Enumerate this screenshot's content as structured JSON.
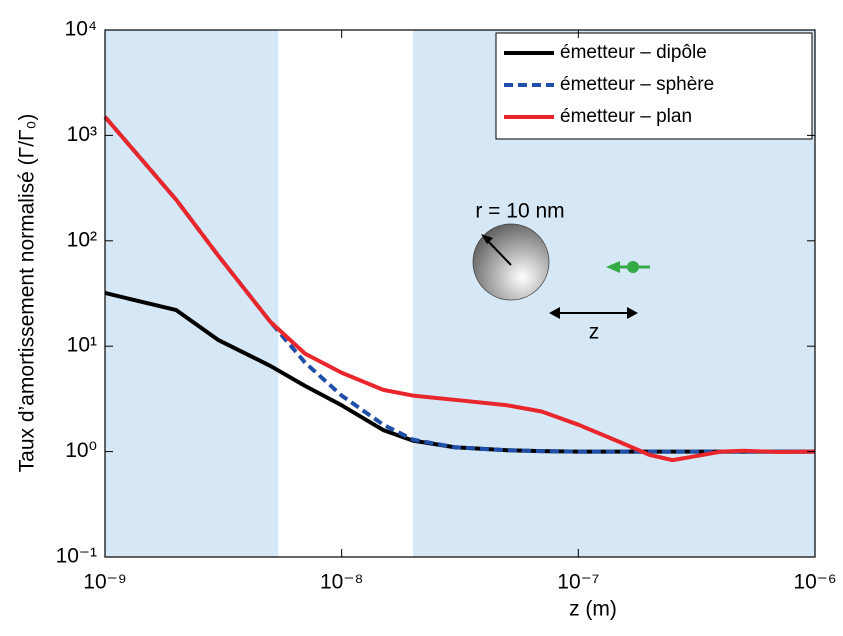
{
  "chart_data": {
    "type": "line",
    "xlabel": "z (m)",
    "ylabel": "Taux d’amortissement normalisé (Γ/Γ₀)",
    "log_x": true,
    "log_y": true,
    "xlim": [
      1e-09,
      1e-06
    ],
    "ylim": [
      0.1,
      10000
    ],
    "xticks": [
      {
        "value": 1e-09,
        "label": "10⁻⁹"
      },
      {
        "value": 1e-08,
        "label": "10⁻⁸"
      },
      {
        "value": 1e-07,
        "label": "10⁻⁷"
      },
      {
        "value": 1e-06,
        "label": "10⁻⁶"
      }
    ],
    "yticks": [
      {
        "value": 0.1,
        "label": "10⁻¹"
      },
      {
        "value": 1,
        "label": "10⁰"
      },
      {
        "value": 10,
        "label": "10¹"
      },
      {
        "value": 100,
        "label": "10²"
      },
      {
        "value": 1000,
        "label": "10³"
      },
      {
        "value": 10000,
        "label": "10⁴"
      }
    ],
    "shaded_regions": [
      [
        1e-09,
        5.4e-09
      ],
      [
        2e-08,
        1e-06
      ]
    ],
    "shade_color": "#d6e8f5",
    "legend": "upper right",
    "annotations": [
      "r = 10 nm",
      "z"
    ],
    "x": [
      1e-09,
      2e-09,
      3e-09,
      5e-09,
      7e-09,
      1e-08,
      1.5e-08,
      2e-08,
      3e-08,
      5e-08,
      7e-08,
      1e-07,
      1.5e-07,
      2e-07,
      2.5e-07,
      3e-07,
      4e-07,
      5e-07,
      7e-07,
      1e-06
    ],
    "series": [
      {
        "name": "émetteur – dipôle",
        "color": "#000000",
        "dash": false,
        "values": [
          32,
          22,
          11.5,
          6.5,
          4.2,
          2.75,
          1.6,
          1.27,
          1.1,
          1.03,
          1.01,
          1,
          1,
          1,
          1,
          1,
          1,
          1,
          1,
          1
        ]
      },
      {
        "name": "émetteur – sphère",
        "color": "#1f4fa8",
        "dash": true,
        "values": [
          1500,
          245,
          73,
          17,
          7,
          3.4,
          1.8,
          1.3,
          1.1,
          1.03,
          1.01,
          1,
          1,
          1,
          1,
          1,
          1,
          1,
          1,
          1
        ]
      },
      {
        "name": "émetteur – plan",
        "color": "#e8262b",
        "dash": false,
        "values": [
          1500,
          245,
          73,
          17,
          8.5,
          5.6,
          3.85,
          3.4,
          3.1,
          2.75,
          2.4,
          1.8,
          1.23,
          0.93,
          0.83,
          0.89,
          1.0,
          1.02,
          0.99,
          1
        ]
      }
    ]
  }
}
